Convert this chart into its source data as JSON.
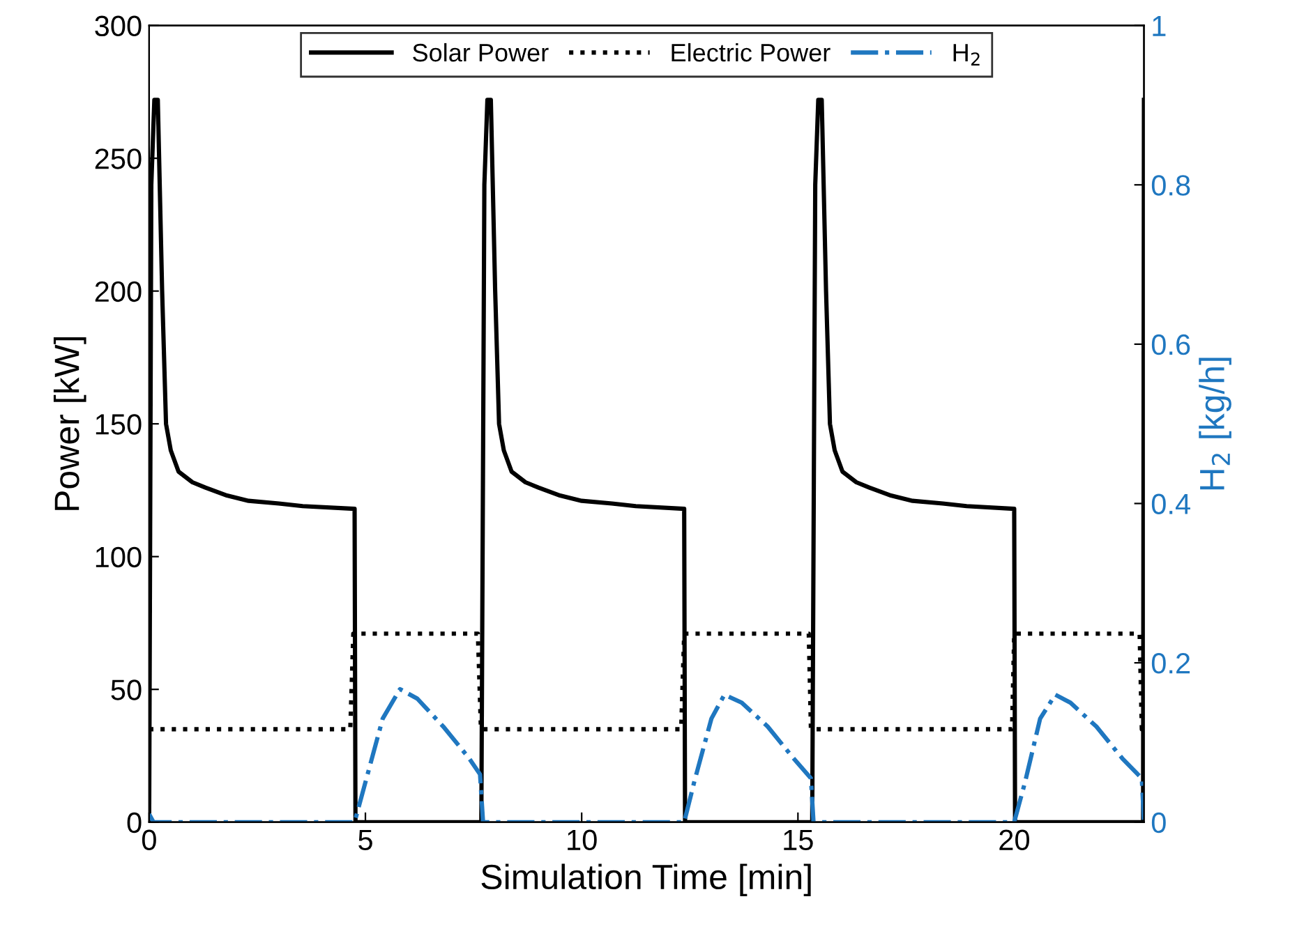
{
  "chart_data": {
    "type": "line",
    "xlabel": "Simulation Time [min]",
    "ylabel": "Power [kW]",
    "y2label": "H$_{2}$ [kg/h]",
    "xlim": [
      0,
      23
    ],
    "xticks": [
      0,
      5,
      10,
      15,
      20
    ],
    "ylim": [
      0,
      300
    ],
    "yticks": [
      0,
      50,
      100,
      150,
      200,
      250,
      300
    ],
    "y2lim": [
      0,
      1
    ],
    "y2ticks": [
      0,
      0.2,
      0.4,
      0.6,
      0.8,
      1
    ],
    "grid": false,
    "legend": "top",
    "marker": "none",
    "series": [
      {
        "name": "Solar Power",
        "color": "#000000",
        "line_style": "solid",
        "x": [
          0,
          0.05,
          0.12,
          0.2,
          0.3,
          0.39,
          0.5,
          0.68,
          1.0,
          1.3,
          1.8,
          2.3,
          3.0,
          3.55,
          4.75,
          4.77,
          7.68,
          7.75,
          7.82,
          7.9,
          8.0,
          8.09,
          8.2,
          8.38,
          8.7,
          9.0,
          9.5,
          10.0,
          10.7,
          11.25,
          12.37,
          12.39,
          15.33,
          15.4,
          15.47,
          15.55,
          15.65,
          15.74,
          15.85,
          16.03,
          16.35,
          16.65,
          17.15,
          17.65,
          18.35,
          18.9,
          20.0,
          20.02,
          22.98,
          23.0
        ],
        "values": [
          0,
          240,
          272,
          272,
          200,
          150,
          140,
          132,
          128,
          126,
          123,
          121,
          120,
          119,
          118,
          0,
          0,
          240,
          272,
          272,
          200,
          150,
          140,
          132,
          128,
          126,
          123,
          121,
          120,
          119,
          118,
          0,
          0,
          240,
          272,
          272,
          200,
          150,
          140,
          132,
          128,
          126,
          123,
          121,
          120,
          119,
          118,
          0,
          0,
          272
        ]
      },
      {
        "name": "Electric Power",
        "color": "#000000",
        "line_style": "dotted",
        "x": [
          0,
          4.65,
          4.72,
          7.6,
          7.67,
          12.3,
          12.37,
          15.25,
          15.3,
          19.95,
          20.0,
          22.9,
          22.95,
          23.0
        ],
        "values": [
          35,
          35,
          71,
          71,
          35,
          35,
          71,
          71,
          35,
          35,
          71,
          71,
          35,
          35
        ]
      },
      {
        "name": "H$_{2}$",
        "color": "#1f77c0",
        "line_style": "dashdot",
        "axis": "y2",
        "x": [
          0,
          0.1,
          4.75,
          5.0,
          5.4,
          5.8,
          6.2,
          6.8,
          7.4,
          7.65,
          7.72,
          12.37,
          12.6,
          13.0,
          13.3,
          13.7,
          14.3,
          14.9,
          15.3,
          15.36,
          20.0,
          20.25,
          20.6,
          20.95,
          21.3,
          21.9,
          22.5,
          22.95,
          23.0
        ],
        "values": [
          0.01,
          0,
          0,
          0.05,
          0.13,
          0.167,
          0.155,
          0.12,
          0.08,
          0.06,
          0,
          0,
          0.05,
          0.13,
          0.16,
          0.15,
          0.12,
          0.08,
          0.055,
          0,
          0,
          0.05,
          0.13,
          0.16,
          0.15,
          0.12,
          0.08,
          0.055,
          0
        ]
      }
    ]
  }
}
